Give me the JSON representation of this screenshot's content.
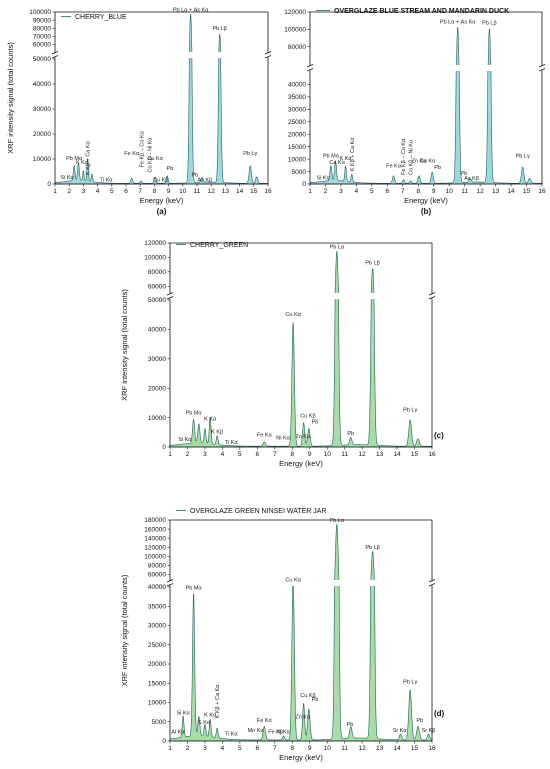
{
  "chart_data": [
    {
      "type": "area",
      "panel": "(a)",
      "legend": "CHERRY_BLUE",
      "legend_bold": false,
      "xlabel": "Energy (keV)",
      "ylabel": "XRF intensity signal (total counts)",
      "xlim": [
        1,
        16
      ],
      "xticks": [
        "1",
        "2",
        "3",
        "4",
        "5",
        "6",
        "7",
        "8",
        "9",
        "10",
        "11",
        "12",
        "13",
        "14",
        "15",
        "16"
      ],
      "color": "#9fd8dd",
      "lower_ylim": [
        0,
        50000
      ],
      "lower_ticks": [
        "0",
        "10000",
        "20000",
        "30000",
        "40000",
        "50000"
      ],
      "upper_ylim": [
        52000,
        100000
      ],
      "upper_ticks": [
        "60000",
        "70000",
        "80000",
        "90000",
        "100000"
      ],
      "peaks": [
        [
          2.35,
          6000,
          0.06
        ],
        [
          2.65,
          7000,
          0.06
        ],
        [
          3.0,
          4000,
          0.05
        ],
        [
          3.3,
          9000,
          0.05
        ],
        [
          3.6,
          3000,
          0.05
        ],
        [
          6.4,
          2000,
          0.07
        ],
        [
          7.05,
          1000,
          0.06
        ],
        [
          8.05,
          2500,
          0.07
        ],
        [
          8.9,
          3000,
          0.07
        ],
        [
          10.55,
          97000,
          0.08
        ],
        [
          11.35,
          2000,
          0.07
        ],
        [
          12.6,
          72000,
          0.08
        ],
        [
          14.75,
          7000,
          0.08
        ],
        [
          15.2,
          2500,
          0.08
        ]
      ],
      "labels": [
        {
          "x": 1.85,
          "y": 1500,
          "t": "Si Kα"
        },
        {
          "x": 2.35,
          "y": 9000,
          "t": "Pb Mα"
        },
        {
          "x": 2.9,
          "y": 7500,
          "t": "K Kα"
        },
        {
          "x": 3.3,
          "y": 3000,
          "t": "K Kβ + Ca Kα"
        },
        {
          "x": 4.6,
          "y": 500,
          "t": "Ti Kα"
        },
        {
          "x": 6.4,
          "y": 11000,
          "t": "Fe Kα"
        },
        {
          "x": 7.1,
          "y": 6000,
          "t": "Fe Kβ – Co Kα"
        },
        {
          "x": 7.65,
          "y": 4000,
          "t": "Co Kβ – Ni Kα"
        },
        {
          "x": 8.05,
          "y": 9000,
          "t": "Cu Kα"
        },
        {
          "x": 8.45,
          "y": 500,
          "t": "Cu Kβ"
        },
        {
          "x": 9.1,
          "y": 5000,
          "t": "Pb"
        },
        {
          "x": 10.85,
          "y": 2500,
          "t": "Pb"
        },
        {
          "x": 11.55,
          "y": 500,
          "t": "As Kβ"
        },
        {
          "x": 10.55,
          "y": 99000,
          "t": "Pb Lα + As Kα"
        },
        {
          "x": 12.6,
          "y": 76000,
          "t": "Pb Lβ"
        },
        {
          "x": 14.75,
          "y": 11000,
          "t": "Pb Lγ"
        }
      ]
    },
    {
      "type": "area",
      "panel": "(b)",
      "legend": "OVERGLAZE BLUE STREAM AND MANDARIN DUCK",
      "legend_bold": true,
      "xlabel": "Energy (keV)",
      "ylabel": "",
      "xlim": [
        1,
        16
      ],
      "xticks": [
        "1",
        "2",
        "3",
        "4",
        "5",
        "6",
        "7",
        "8",
        "9",
        "10",
        "11",
        "12",
        "13",
        "14",
        "15",
        "16"
      ],
      "color": "#9fd8dd",
      "lower_ylim": [
        0,
        45000
      ],
      "lower_ticks": [
        "0",
        "5000",
        "10000",
        "15000",
        "20000",
        "25000",
        "30000",
        "35000",
        "40000"
      ],
      "upper_ylim": [
        60000,
        120000
      ],
      "upper_ticks": [
        "80000",
        "100000",
        "120000"
      ],
      "peaks": [
        [
          2.35,
          6000,
          0.06
        ],
        [
          2.65,
          8000,
          0.06
        ],
        [
          3.3,
          6000,
          0.05
        ],
        [
          3.7,
          3000,
          0.05
        ],
        [
          6.4,
          3000,
          0.07
        ],
        [
          7.05,
          1500,
          0.06
        ],
        [
          7.5,
          1000,
          0.06
        ],
        [
          8.05,
          3000,
          0.07
        ],
        [
          8.9,
          4500,
          0.07
        ],
        [
          10.55,
          102000,
          0.08
        ],
        [
          11.35,
          1500,
          0.07
        ],
        [
          12.6,
          100000,
          0.08
        ],
        [
          14.75,
          6500,
          0.08
        ],
        [
          15.2,
          2000,
          0.08
        ]
      ],
      "labels": [
        {
          "x": 1.85,
          "y": 1200,
          "t": "Si Kα"
        },
        {
          "x": 2.35,
          "y": 10000,
          "t": "Pb Mα"
        },
        {
          "x": 2.75,
          "y": 7500,
          "t": "Ca Kα"
        },
        {
          "x": 3.3,
          "y": 9000,
          "t": "K Kα"
        },
        {
          "x": 3.7,
          "y": 4500,
          "t": "K Kβ + Ca Kα"
        },
        {
          "x": 6.4,
          "y": 6000,
          "t": "Fe Kα"
        },
        {
          "x": 7.0,
          "y": 3000,
          "t": "Fe Kβ – Co Kα"
        },
        {
          "x": 7.5,
          "y": 3000,
          "t": "Co Kβ – Ni Kα"
        },
        {
          "x": 8.05,
          "y": 8000,
          "t": "Zn Kα"
        },
        {
          "x": 8.6,
          "y": 8000,
          "t": "Cu Kα"
        },
        {
          "x": 9.25,
          "y": 5500,
          "t": "Pb"
        },
        {
          "x": 10.95,
          "y": 3000,
          "t": "Pb"
        },
        {
          "x": 11.45,
          "y": 1000,
          "t": "As Kβ"
        },
        {
          "x": 10.55,
          "y": 105000,
          "t": "Pb Lα + As Kα"
        },
        {
          "x": 12.6,
          "y": 104000,
          "t": "Pb Lβ"
        },
        {
          "x": 14.75,
          "y": 10000,
          "t": "Pb Lγ"
        }
      ]
    },
    {
      "type": "area",
      "panel": "(c)",
      "legend": "CHERRY_GREEN",
      "legend_bold": false,
      "xlabel": "Energy (keV)",
      "ylabel": "XRF intensity signal (total counts)",
      "xlim": [
        1,
        16
      ],
      "xticks": [
        "1",
        "2",
        "3",
        "4",
        "5",
        "6",
        "7",
        "8",
        "9",
        "10",
        "11",
        "12",
        "13",
        "14",
        "15",
        "16"
      ],
      "color": "#a8dca8",
      "lower_ylim": [
        0,
        50000
      ],
      "lower_ticks": [
        "0",
        "10000",
        "20000",
        "30000",
        "40000",
        "50000"
      ],
      "upper_ylim": [
        52000,
        120000
      ],
      "upper_ticks": [
        "60000",
        "80000",
        "100000",
        "120000"
      ],
      "peaks": [
        [
          2.35,
          8000,
          0.06
        ],
        [
          2.65,
          6500,
          0.06
        ],
        [
          3.0,
          5000,
          0.05
        ],
        [
          3.3,
          9000,
          0.05
        ],
        [
          3.7,
          3000,
          0.05
        ],
        [
          6.4,
          1500,
          0.07
        ],
        [
          8.05,
          42000,
          0.07
        ],
        [
          8.65,
          8000,
          0.06
        ],
        [
          8.95,
          6000,
          0.07
        ],
        [
          10.55,
          108000,
          0.08
        ],
        [
          11.35,
          2500,
          0.07
        ],
        [
          12.6,
          84000,
          0.08
        ],
        [
          14.75,
          9000,
          0.08
        ],
        [
          15.2,
          2500,
          0.08
        ]
      ],
      "labels": [
        {
          "x": 1.85,
          "y": 1500,
          "t": "Si Kα"
        },
        {
          "x": 2.35,
          "y": 10500,
          "t": "Pb Mα"
        },
        {
          "x": 3.3,
          "y": 8500,
          "t": "K Kα"
        },
        {
          "x": 3.7,
          "y": 4000,
          "t": "K Kβ"
        },
        {
          "x": 4.5,
          "y": 500,
          "t": "Ti Kα"
        },
        {
          "x": 6.4,
          "y": 3000,
          "t": "Fe Kα"
        },
        {
          "x": 7.47,
          "y": 2000,
          "t": "Ni Kα"
        },
        {
          "x": 8.05,
          "y": 44000,
          "t": "Cu Kα"
        },
        {
          "x": 8.6,
          "y": 2500,
          "t": "Zn Kα"
        },
        {
          "x": 8.9,
          "y": 9500,
          "t": "Cu Kβ"
        },
        {
          "x": 9.3,
          "y": 7500,
          "t": "Pb"
        },
        {
          "x": 11.35,
          "y": 3500,
          "t": "Pb"
        },
        {
          "x": 10.55,
          "y": 110000,
          "t": "Pb Lα"
        },
        {
          "x": 12.6,
          "y": 88000,
          "t": "Pb Lβ"
        },
        {
          "x": 14.75,
          "y": 11500,
          "t": "Pb Lγ"
        }
      ]
    },
    {
      "type": "area",
      "panel": "(d)",
      "legend": "OVERGLAZE GREEN NINSEI WATER JAR",
      "legend_bold": false,
      "xlabel": "Energy (keV)",
      "ylabel": "XRF intensity signal (total counts)",
      "xlim": [
        1,
        16
      ],
      "xticks": [
        "1",
        "2",
        "3",
        "4",
        "5",
        "6",
        "7",
        "8",
        "9",
        "10",
        "11",
        "12",
        "13",
        "14",
        "15",
        "16"
      ],
      "color": "#a8dca8",
      "lower_ylim": [
        0,
        40000
      ],
      "lower_ticks": [
        "0",
        "5000",
        "10000",
        "15000",
        "20000",
        "25000",
        "30000",
        "35000",
        "40000"
      ],
      "upper_ylim": [
        50000,
        180000
      ],
      "upper_ticks": [
        "60000",
        "80000",
        "100000",
        "120000",
        "140000",
        "160000",
        "180000"
      ],
      "peaks": [
        [
          1.75,
          5500,
          0.05
        ],
        [
          2.35,
          37000,
          0.06
        ],
        [
          2.65,
          5000,
          0.06
        ],
        [
          3.0,
          3000,
          0.05
        ],
        [
          3.3,
          4500,
          0.05
        ],
        [
          3.7,
          2500,
          0.05
        ],
        [
          6.4,
          3500,
          0.07
        ],
        [
          7.5,
          1000,
          0.06
        ],
        [
          8.05,
          42000,
          0.07
        ],
        [
          8.65,
          9500,
          0.06
        ],
        [
          8.95,
          8000,
          0.07
        ],
        [
          10.55,
          170000,
          0.08
        ],
        [
          11.35,
          3000,
          0.07
        ],
        [
          12.6,
          110000,
          0.08
        ],
        [
          14.2,
          1500,
          0.07
        ],
        [
          14.75,
          13000,
          0.08
        ],
        [
          15.2,
          3500,
          0.08
        ],
        [
          15.8,
          1500,
          0.07
        ]
      ],
      "labels": [
        {
          "x": 1.45,
          "y": 1500,
          "t": "Al Kα"
        },
        {
          "x": 1.75,
          "y": 6500,
          "t": "Si Kα"
        },
        {
          "x": 2.35,
          "y": 39000,
          "t": "Pb Mα"
        },
        {
          "x": 2.95,
          "y": 4000,
          "t": "S Kα"
        },
        {
          "x": 3.3,
          "y": 6000,
          "t": "K Kα"
        },
        {
          "x": 3.7,
          "y": 5500,
          "t": "K Kβ + Ca Kα"
        },
        {
          "x": 4.5,
          "y": 1000,
          "t": "Ti Kα"
        },
        {
          "x": 5.9,
          "y": 2000,
          "t": "Mn Kα"
        },
        {
          "x": 6.4,
          "y": 4500,
          "t": "Fe Kα"
        },
        {
          "x": 7.05,
          "y": 1500,
          "t": "Fe Kβ"
        },
        {
          "x": 7.47,
          "y": 1500,
          "t": "Ni Kα"
        },
        {
          "x": 8.05,
          "y": 44000,
          "t": "Cu Kα"
        },
        {
          "x": 8.6,
          "y": 5500,
          "t": "Zn Kα"
        },
        {
          "x": 8.9,
          "y": 11000,
          "t": "Cu Kβ"
        },
        {
          "x": 9.3,
          "y": 10000,
          "t": "Pb"
        },
        {
          "x": 11.3,
          "y": 3500,
          "t": "Pb"
        },
        {
          "x": 10.55,
          "y": 172000,
          "t": "Pb Lα"
        },
        {
          "x": 12.6,
          "y": 113000,
          "t": "Pb Lβ"
        },
        {
          "x": 14.15,
          "y": 2000,
          "t": "Sr Kα"
        },
        {
          "x": 14.75,
          "y": 14500,
          "t": "Pb Lγ"
        },
        {
          "x": 15.3,
          "y": 4500,
          "t": "Pb"
        },
        {
          "x": 15.8,
          "y": 2000,
          "t": "Sr Kβ"
        }
      ]
    }
  ]
}
